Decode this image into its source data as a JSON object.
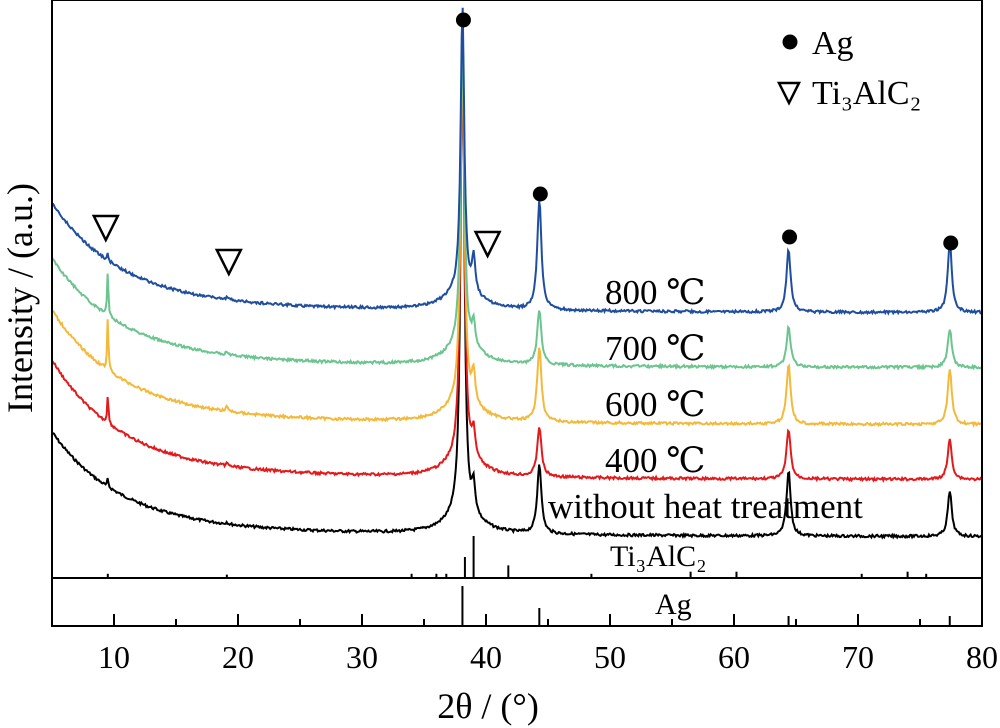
{
  "chart_data": {
    "type": "line",
    "xlabel": "2θ / (°)",
    "ylabel": "Intensity / (a.u.)",
    "xlim": [
      5,
      80
    ],
    "x_ticks": [
      10,
      20,
      30,
      40,
      50,
      60,
      70,
      80
    ],
    "x_tick_labels": [
      "10",
      "20",
      "30",
      "40",
      "50",
      "60",
      "70",
      "80"
    ],
    "y_ticks": [],
    "grid": false,
    "legend": {
      "placement": "top-right",
      "entries": [
        {
          "marker": "filled-circle",
          "label": "Ag"
        },
        {
          "marker": "open-down-triangle",
          "label": "Ti₃AlC₂"
        }
      ]
    },
    "series": [
      {
        "name": "without heat treatment",
        "color": "#000000"
      },
      {
        "name": "400 ℃",
        "color": "#e31a1c"
      },
      {
        "name": "600 ℃",
        "color": "#f3b93a"
      },
      {
        "name": "700 ℃",
        "color": "#6cc48f"
      },
      {
        "name": "800 ℃",
        "color": "#1f4e9e"
      }
    ],
    "peak_positions_2theta": {
      "Ag": [
        38.1,
        44.3,
        64.4,
        77.4
      ],
      "Ti3AlC2": [
        9.5,
        19.1,
        39.0
      ]
    },
    "reference_patterns": [
      {
        "label": "Ti₃AlC₂",
        "sticks": [
          [
            9.5,
            0.1
          ],
          [
            19.1,
            0.08
          ],
          [
            34.0,
            0.1
          ],
          [
            36.0,
            0.1
          ],
          [
            36.8,
            0.1
          ],
          [
            38.3,
            0.5
          ],
          [
            39.0,
            1.0
          ],
          [
            41.8,
            0.3
          ],
          [
            48.5,
            0.1
          ],
          [
            56.5,
            0.15
          ],
          [
            60.2,
            0.15
          ],
          [
            70.3,
            0.1
          ],
          [
            74.0,
            0.15
          ],
          [
            75.5,
            0.1
          ]
        ]
      },
      {
        "label": "Ag",
        "sticks": [
          [
            38.1,
            1.0
          ],
          [
            44.3,
            0.45
          ],
          [
            64.4,
            0.25
          ],
          [
            77.4,
            0.25
          ]
        ]
      }
    ]
  }
}
